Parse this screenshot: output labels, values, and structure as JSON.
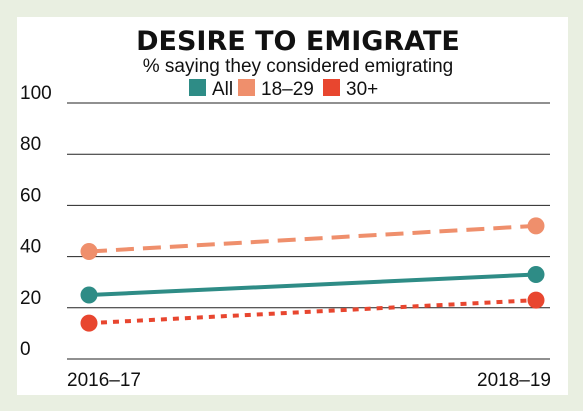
{
  "chart_data": {
    "type": "line",
    "title": "DESIRE TO EMIGRATE",
    "subtitle": "% saying they considered emigrating",
    "categories": [
      "2016–17",
      "2018–19"
    ],
    "ylim": [
      0,
      100
    ],
    "yticks": [
      "100",
      "80",
      "60",
      "40",
      "20",
      "0"
    ],
    "grid": true,
    "legend_position": "top",
    "series": [
      {
        "name": "All",
        "values": [
          25,
          33
        ],
        "color": "#2e8c86",
        "style": "solid"
      },
      {
        "name": "18–29",
        "values": [
          42,
          52
        ],
        "color": "#ef8f6c",
        "style": "dashed"
      },
      {
        "name": "30+",
        "values": [
          14,
          23
        ],
        "color": "#e8462f",
        "style": "dotted"
      }
    ]
  }
}
